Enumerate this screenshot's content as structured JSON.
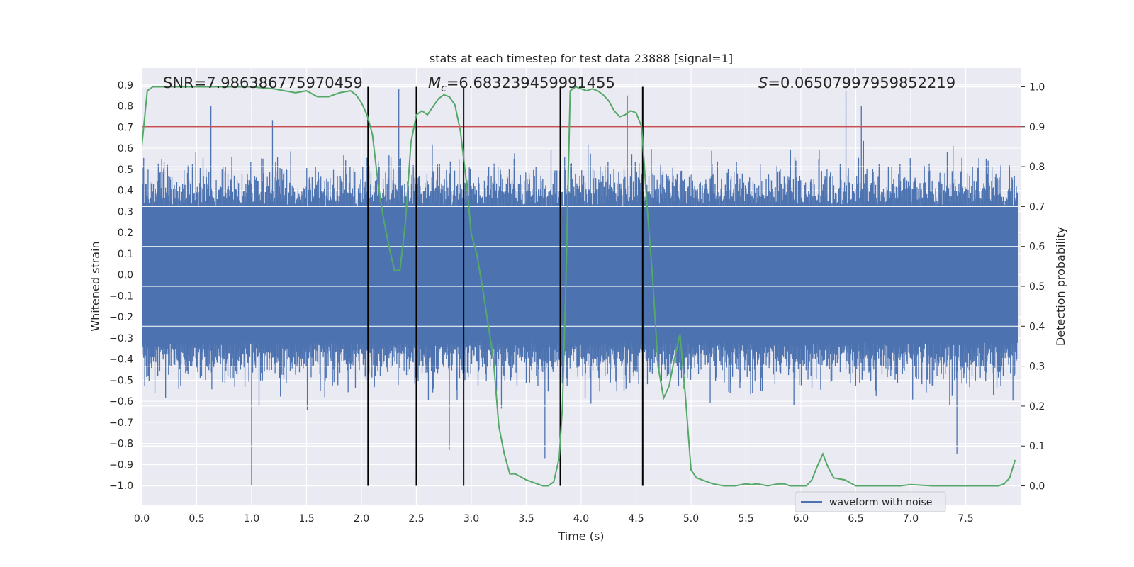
{
  "chart_data": {
    "type": "line",
    "title": "stats at each timestep for test data 23888 [signal=1]",
    "xlabel": "Time (s)",
    "ylabel": "Whitened strain",
    "y2label": "Detection probability",
    "xlim": [
      0,
      8
    ],
    "ylim": [
      -1.09,
      0.98
    ],
    "y2lim": [
      -0.047,
      1.047
    ],
    "x_ticks": [
      "0.0",
      "0.5",
      "1.0",
      "1.5",
      "2.0",
      "2.5",
      "3.0",
      "3.5",
      "4.0",
      "4.5",
      "5.0",
      "5.5",
      "6.0",
      "6.5",
      "7.0",
      "7.5"
    ],
    "y_ticks": [
      "0.9",
      "0.8",
      "0.7",
      "0.6",
      "0.5",
      "0.4",
      "0.3",
      "0.2",
      "0.1",
      "0.0",
      "−0.1",
      "−0.2",
      "−0.3",
      "−0.4",
      "−0.5",
      "−0.6",
      "−0.7",
      "−0.8",
      "−0.9",
      "−1.0"
    ],
    "y2_ticks": [
      "1.0",
      "0.9",
      "0.8",
      "0.7",
      "0.6",
      "0.5",
      "0.4",
      "0.3",
      "0.2",
      "0.1",
      "0.0"
    ],
    "grid": true,
    "annotations": {
      "snr": "SNR=7.986386775970459",
      "mc_symbol": "M",
      "mc_subscript": "c",
      "mc_value": "=6.683239459991455",
      "s_symbol": "S",
      "s_value": "=0.06507997959852219"
    },
    "threshold": {
      "y2": 0.9,
      "color": "#c44e52"
    },
    "vlines": [
      2.06,
      2.5,
      2.93,
      3.81,
      4.56
    ],
    "legend": {
      "label": "waveform with noise",
      "placement": "lower-right"
    },
    "series": [
      {
        "name": "waveform with noise",
        "axis": "left",
        "color": "#4c72b0",
        "kind": "noise",
        "envelope": {
          "min": -1.0,
          "max": 0.88
        },
        "sample_peaks": [
          {
            "x": 0.63,
            "y": 0.8
          },
          {
            "x": 1.0,
            "y": -1.0
          },
          {
            "x": 1.19,
            "y": 0.73
          },
          {
            "x": 2.34,
            "y": 0.88
          },
          {
            "x": 2.5,
            "y": 0.87
          },
          {
            "x": 2.8,
            "y": -0.83
          },
          {
            "x": 3.67,
            "y": -0.87
          },
          {
            "x": 4.42,
            "y": 0.85
          },
          {
            "x": 6.41,
            "y": 0.87
          },
          {
            "x": 6.55,
            "y": 0.8
          },
          {
            "x": 7.42,
            "y": -0.85
          }
        ]
      },
      {
        "name": "",
        "axis": "right",
        "color": "#55a868",
        "x": [
          0.0,
          0.05,
          0.1,
          0.2,
          0.4,
          0.6,
          0.8,
          1.0,
          1.2,
          1.4,
          1.5,
          1.6,
          1.7,
          1.8,
          1.9,
          1.95,
          2.0,
          2.05,
          2.1,
          2.15,
          2.2,
          2.25,
          2.3,
          2.35,
          2.4,
          2.45,
          2.5,
          2.55,
          2.6,
          2.7,
          2.75,
          2.8,
          2.85,
          2.9,
          2.93,
          2.96,
          3.0,
          3.05,
          3.1,
          3.15,
          3.2,
          3.25,
          3.3,
          3.35,
          3.4,
          3.5,
          3.6,
          3.65,
          3.7,
          3.75,
          3.8,
          3.83,
          3.86,
          3.9,
          3.95,
          4.0,
          4.05,
          4.1,
          4.15,
          4.2,
          4.25,
          4.3,
          4.35,
          4.4,
          4.45,
          4.5,
          4.55,
          4.6,
          4.65,
          4.7,
          4.75,
          4.8,
          4.85,
          4.9,
          4.95,
          5.0,
          5.05,
          5.1,
          5.2,
          5.3,
          5.4,
          5.5,
          5.55,
          5.6,
          5.7,
          5.75,
          5.8,
          5.85,
          5.9,
          5.95,
          6.0,
          6.05,
          6.1,
          6.15,
          6.2,
          6.25,
          6.3,
          6.4,
          6.5,
          6.6,
          6.7,
          6.8,
          6.9,
          7.0,
          7.2,
          7.4,
          7.6,
          7.7,
          7.8,
          7.85,
          7.9,
          7.95
        ],
        "y": [
          0.85,
          0.99,
          1.0,
          1.0,
          1.0,
          1.0,
          1.0,
          1.0,
          0.995,
          0.985,
          0.99,
          0.975,
          0.975,
          0.985,
          0.99,
          0.98,
          0.96,
          0.93,
          0.88,
          0.76,
          0.67,
          0.6,
          0.54,
          0.54,
          0.66,
          0.86,
          0.93,
          0.94,
          0.93,
          0.97,
          0.98,
          0.975,
          0.955,
          0.89,
          0.82,
          0.75,
          0.63,
          0.58,
          0.5,
          0.41,
          0.32,
          0.15,
          0.08,
          0.03,
          0.03,
          0.015,
          0.005,
          0.0,
          0.0,
          0.01,
          0.07,
          0.2,
          0.5,
          0.99,
          1.0,
          0.995,
          0.99,
          0.995,
          0.99,
          0.98,
          0.965,
          0.94,
          0.925,
          0.93,
          0.94,
          0.935,
          0.9,
          0.7,
          0.52,
          0.3,
          0.22,
          0.25,
          0.32,
          0.38,
          0.22,
          0.04,
          0.02,
          0.015,
          0.005,
          0.0,
          0.0,
          0.005,
          0.003,
          0.005,
          0.0,
          0.003,
          0.005,
          0.005,
          0.0,
          0.0,
          0.0,
          0.0,
          0.015,
          0.05,
          0.08,
          0.045,
          0.02,
          0.015,
          0.0,
          0.0,
          0.0,
          0.0,
          0.0,
          0.003,
          0.0,
          0.0,
          0.0,
          0.0,
          0.0,
          0.005,
          0.02,
          0.065
        ]
      }
    ]
  }
}
